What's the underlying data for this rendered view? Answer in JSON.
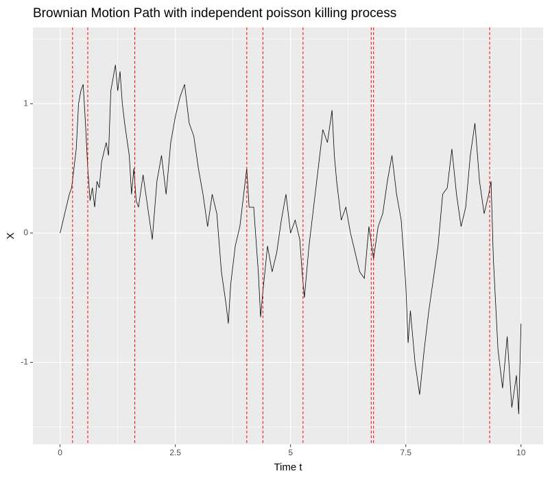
{
  "chart_data": {
    "type": "line",
    "title": "Brownian Motion Path with independent poisson killing process",
    "x_label": "Time t",
    "y_label": "X",
    "x": [
      0,
      0.1,
      0.2,
      0.25,
      0.3,
      0.35,
      0.4,
      0.45,
      0.5,
      0.55,
      0.6,
      0.65,
      0.7,
      0.75,
      0.8,
      0.85,
      0.9,
      1.0,
      1.05,
      1.1,
      1.15,
      1.2,
      1.25,
      1.3,
      1.35,
      1.4,
      1.5,
      1.55,
      1.6,
      1.65,
      1.7,
      1.8,
      1.9,
      2.0,
      2.1,
      2.2,
      2.3,
      2.4,
      2.5,
      2.6,
      2.7,
      2.75,
      2.8,
      2.9,
      3.0,
      3.1,
      3.2,
      3.3,
      3.4,
      3.5,
      3.6,
      3.65,
      3.7,
      3.8,
      3.9,
      4.0,
      4.05,
      4.1,
      4.2,
      4.3,
      4.35,
      4.4,
      4.5,
      4.6,
      4.7,
      4.8,
      4.9,
      5.0,
      5.1,
      5.2,
      5.25,
      5.3,
      5.4,
      5.5,
      5.6,
      5.7,
      5.8,
      5.9,
      5.95,
      6.0,
      6.1,
      6.2,
      6.3,
      6.4,
      6.5,
      6.6,
      6.7,
      6.8,
      6.9,
      7.0,
      7.1,
      7.2,
      7.3,
      7.4,
      7.5,
      7.55,
      7.6,
      7.7,
      7.8,
      7.9,
      8.0,
      8.1,
      8.2,
      8.3,
      8.4,
      8.5,
      8.6,
      8.7,
      8.8,
      8.9,
      9.0,
      9.1,
      9.2,
      9.3,
      9.35,
      9.4,
      9.5,
      9.6,
      9.7,
      9.8,
      9.9,
      9.95,
      10.0
    ],
    "series": [
      {
        "name": "X",
        "color": "#000000",
        "values": [
          0,
          0.15,
          0.3,
          0.35,
          0.5,
          0.65,
          1.0,
          1.1,
          1.15,
          0.85,
          0.5,
          0.25,
          0.35,
          0.2,
          0.4,
          0.35,
          0.55,
          0.7,
          0.6,
          1.1,
          1.2,
          1.3,
          1.1,
          1.25,
          1.0,
          0.85,
          0.6,
          0.3,
          0.5,
          0.25,
          0.2,
          0.45,
          0.2,
          -0.05,
          0.4,
          0.6,
          0.3,
          0.7,
          0.9,
          1.05,
          1.15,
          1.0,
          0.85,
          0.75,
          0.5,
          0.3,
          0.05,
          0.3,
          0.15,
          -0.3,
          -0.55,
          -0.7,
          -0.4,
          -0.1,
          0.05,
          0.35,
          0.5,
          0.2,
          0.2,
          -0.3,
          -0.65,
          -0.45,
          -0.1,
          -0.3,
          -0.15,
          0.1,
          0.3,
          0.0,
          0.1,
          -0.05,
          -0.3,
          -0.5,
          -0.1,
          0.2,
          0.5,
          0.8,
          0.7,
          0.95,
          0.6,
          0.4,
          0.1,
          0.2,
          0.0,
          -0.15,
          -0.3,
          -0.35,
          0.05,
          -0.2,
          0.05,
          0.15,
          0.4,
          0.6,
          0.3,
          0.1,
          -0.4,
          -0.85,
          -0.6,
          -1.0,
          -1.25,
          -0.9,
          -0.6,
          -0.35,
          -0.1,
          0.3,
          0.35,
          0.65,
          0.3,
          0.05,
          0.2,
          0.6,
          0.85,
          0.4,
          0.15,
          0.3,
          0.4,
          -0.2,
          -0.9,
          -1.2,
          -0.8,
          -1.35,
          -1.1,
          -1.4,
          -0.7
        ]
      }
    ],
    "kill_times": [
      0.27,
      0.6,
      1.62,
      4.05,
      4.4,
      5.27,
      6.75,
      6.8,
      9.32
    ],
    "kill_color": "#ff0000",
    "xlim": [
      -0.59,
      10.48
    ],
    "ylim": [
      -1.634,
      1.59
    ],
    "xticks": [
      0,
      2.5,
      5,
      {
        "value": 7.5,
        "label": "7.5"
      },
      10
    ],
    "yticks": [
      -1,
      0,
      1
    ],
    "x_minor_grid": [
      1.25,
      3.75,
      6.25,
      8.75
    ],
    "y_minor_grid": [
      -1.5,
      -0.5,
      0.5,
      1.5
    ],
    "grid": true
  }
}
